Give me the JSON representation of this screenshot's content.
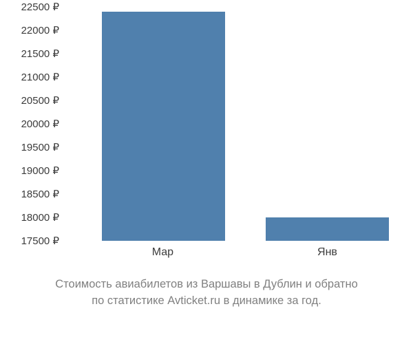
{
  "chart": {
    "type": "bar",
    "background_color": "#ffffff",
    "bar_color": "#5080ad",
    "text_color": "#3b3b3b",
    "caption_color": "#808080",
    "y_axis": {
      "min": 17500,
      "max": 22500,
      "tick_step": 500,
      "ticks": [
        {
          "value": 22500,
          "label": "22500 ₽"
        },
        {
          "value": 22000,
          "label": "22000 ₽"
        },
        {
          "value": 21500,
          "label": "21500 ₽"
        },
        {
          "value": 21000,
          "label": "21000 ₽"
        },
        {
          "value": 20500,
          "label": "20500 ₽"
        },
        {
          "value": 20000,
          "label": "20000 ₽"
        },
        {
          "value": 19500,
          "label": "19500 ₽"
        },
        {
          "value": 19000,
          "label": "19000 ₽"
        },
        {
          "value": 18500,
          "label": "18500 ₽"
        },
        {
          "value": 18000,
          "label": "18000 ₽"
        },
        {
          "value": 17500,
          "label": "17500 ₽"
        }
      ],
      "label_fontsize": 15
    },
    "x_axis": {
      "labels": [
        "Мар",
        "Янв"
      ],
      "label_fontsize": 16
    },
    "bars": [
      {
        "category": "Мар",
        "value": 22400,
        "left_pct": 11,
        "width_pct": 36
      },
      {
        "category": "Янв",
        "value": 18000,
        "left_pct": 59,
        "width_pct": 36
      }
    ],
    "caption_line1": "Стоимость авиабилетов из Варшавы в Дублин и обратно",
    "caption_line2": "по статистике Avticket.ru в динамике за год.",
    "caption_fontsize": 16.5
  }
}
